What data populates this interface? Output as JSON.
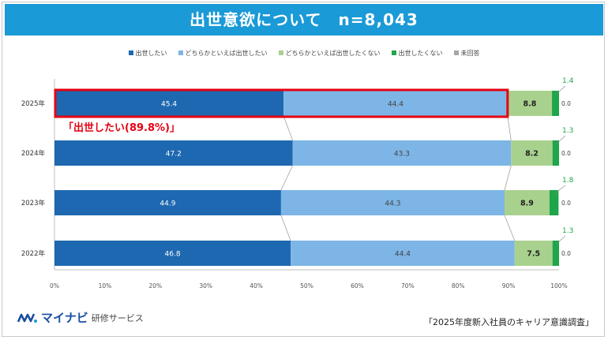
{
  "banner": {
    "title": "出世意欲について　n=8,043"
  },
  "legend": [
    {
      "label": "出世したい",
      "color": "#1d68b0"
    },
    {
      "label": "どちらかといえば出世したい",
      "color": "#7db5e6"
    },
    {
      "label": "どちらかといえば出世したくない",
      "color": "#a9d18e"
    },
    {
      "label": "出世したくない",
      "color": "#1fa54a"
    },
    {
      "label": "未回答",
      "color": "#a6a6a6"
    }
  ],
  "annotation": {
    "text": "「出世したい(89.8%)」",
    "color": "#e60012"
  },
  "footer": {
    "brand": "マイナビ",
    "service": "研修サービス",
    "source": "「2025年度新入社員のキャリア意識調査」"
  },
  "chart_data": {
    "type": "bar",
    "orientation": "horizontal",
    "stacked": true,
    "percent": true,
    "categories": [
      "2025年",
      "2024年",
      "2023年",
      "2022年"
    ],
    "series": [
      {
        "name": "出世したい",
        "values": [
          45.4,
          47.2,
          44.9,
          46.8
        ],
        "color": "#1d68b0",
        "label_color": "#ffffff"
      },
      {
        "name": "どちらかといえば出世したい",
        "values": [
          44.4,
          43.3,
          44.3,
          44.4
        ],
        "color": "#7db5e6",
        "label_color": "#444444"
      },
      {
        "name": "どちらかといえば出世したくない",
        "values": [
          8.8,
          8.2,
          8.9,
          7.5
        ],
        "color": "#a9d18e",
        "label_color": "#222222"
      },
      {
        "name": "出世したくない",
        "values": [
          1.4,
          1.3,
          1.8,
          1.3
        ],
        "color": "#1fa54a",
        "label_color": "#1fa54a"
      },
      {
        "name": "未回答",
        "values": [
          0.0,
          0.0,
          0.0,
          0.0
        ],
        "color": "#a6a6a6",
        "label_color": "#444444"
      }
    ],
    "xlim": [
      0,
      100
    ],
    "xticks": [
      "0%",
      "10%",
      "20%",
      "30%",
      "40%",
      "50%",
      "60%",
      "70%",
      "80%",
      "90%",
      "100%"
    ],
    "highlight_category": "2025年",
    "legend_position": "top"
  }
}
